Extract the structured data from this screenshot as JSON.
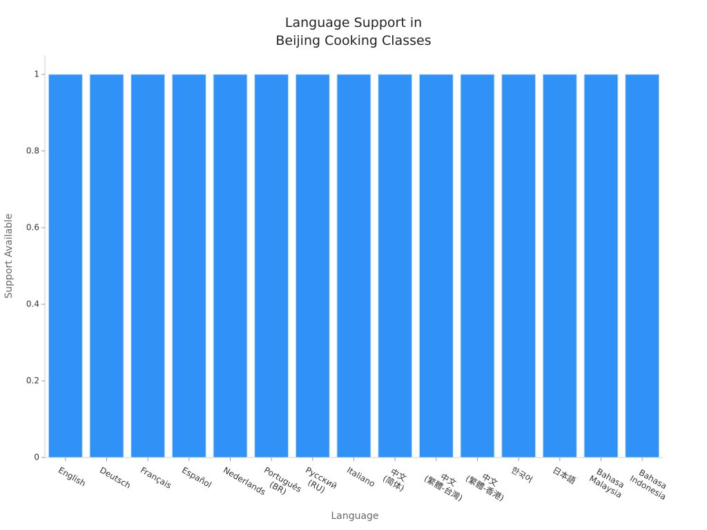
{
  "chart_data": {
    "type": "bar",
    "title": "Language Support in\nBeijing Cooking Classes",
    "xlabel": "Language",
    "ylabel": "Support Available",
    "categories": [
      "English",
      "Deutsch",
      "Français",
      "Español",
      "Nederlands",
      "Português\n(BR)",
      "Русский\n(RU)",
      "Italiano",
      "中文\n(简体)",
      "中文\n(繁體-台灣)",
      "中文\n(繁體-香港)",
      "한국어",
      "日本語",
      "Bahasa\nMalaysia",
      "Bahasa\nIndonesia"
    ],
    "values": [
      1,
      1,
      1,
      1,
      1,
      1,
      1,
      1,
      1,
      1,
      1,
      1,
      1,
      1,
      1
    ],
    "color": "#3092f7",
    "ylim": [
      0,
      1.05
    ],
    "yticks": [
      0,
      0.2,
      0.4,
      0.6,
      0.8,
      1
    ]
  }
}
